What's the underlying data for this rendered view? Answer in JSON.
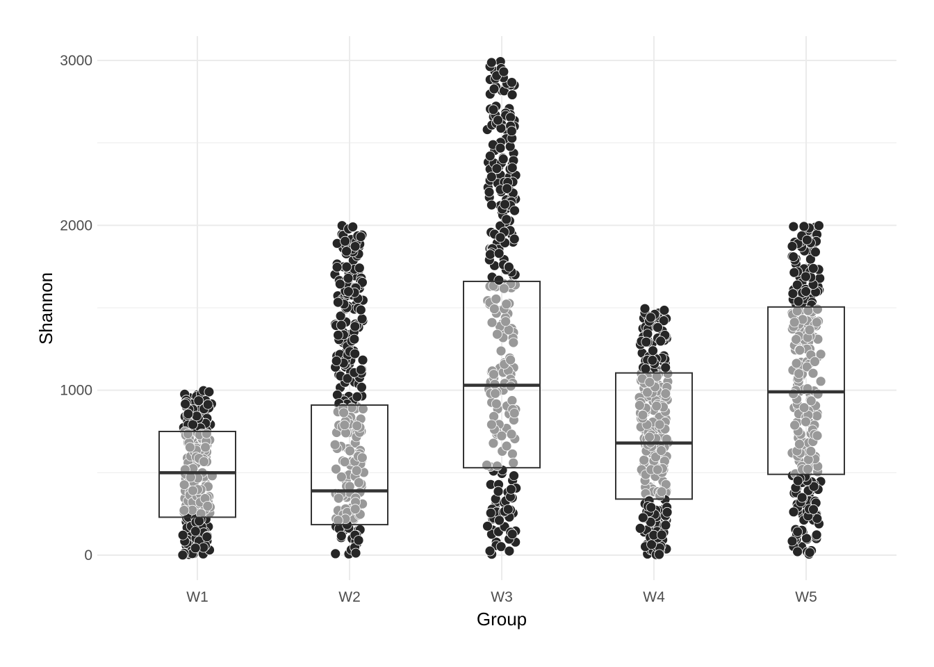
{
  "chart_data": {
    "type": "box",
    "xlabel": "Group",
    "ylabel": "Shannon",
    "categories": [
      "W1",
      "W2",
      "W3",
      "W4",
      "W5"
    ],
    "ylim": [
      -150,
      3150
    ],
    "yticks": [
      0,
      1000,
      2000,
      3000
    ],
    "grid": true,
    "legend": "none",
    "boxes": [
      {
        "group": "W1",
        "q1": 230,
        "median": 500,
        "q3": 750,
        "min": 0,
        "max": 1000
      },
      {
        "group": "W2",
        "q1": 185,
        "median": 390,
        "q3": 910,
        "min": 0,
        "max": 2000
      },
      {
        "group": "W3",
        "q1": 530,
        "median": 1030,
        "q3": 1660,
        "min": 0,
        "max": 3000
      },
      {
        "group": "W4",
        "q1": 340,
        "median": 680,
        "q3": 1105,
        "min": 0,
        "max": 1500
      },
      {
        "group": "W5",
        "q1": 490,
        "median": 990,
        "q3": 1505,
        "min": 0,
        "max": 2000
      }
    ],
    "points_per_group": 280,
    "colors": {
      "inside_box_points": "#999999",
      "outside_box_points": "#262626",
      "point_outline": "#ffffff",
      "box_line": "#333333",
      "median_line": "#333333",
      "grid": "#ebebeb"
    }
  }
}
